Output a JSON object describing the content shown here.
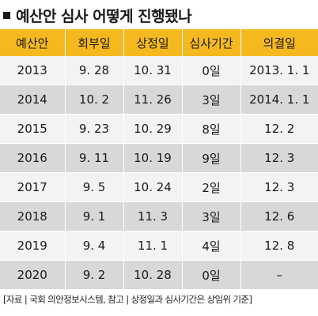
{
  "title": "예산안 심사 어떻게 진행됐나",
  "headers": [
    "예산안",
    "회부일",
    "상정일",
    "심사기간",
    "의결일"
  ],
  "rows": [
    [
      "2013",
      "9. 28",
      "10. 31",
      "0일",
      "2013. 1. 1"
    ],
    [
      "2014",
      "10. 2",
      "11. 26",
      "3일",
      "2014. 1. 1"
    ],
    [
      "2015",
      "9. 23",
      "10. 29",
      "8일",
      "12. 2"
    ],
    [
      "2016",
      "9. 11",
      "10. 19",
      "9일",
      "12. 3"
    ],
    [
      "2017",
      "9. 5",
      "10. 24",
      "2일",
      "12. 3"
    ],
    [
      "2018",
      "9. 1",
      "11. 3",
      "3일",
      "12. 6"
    ],
    [
      "2019",
      "9. 4",
      "11. 1",
      "4일",
      "12. 8"
    ],
    [
      "2020",
      "9. 2",
      "10. 28",
      "0일",
      "–"
    ]
  ],
  "footer": "[자료 | 국회 의안정보시스템, 참고 | 상정일과 심사기간은 상임위 기준]"
}
